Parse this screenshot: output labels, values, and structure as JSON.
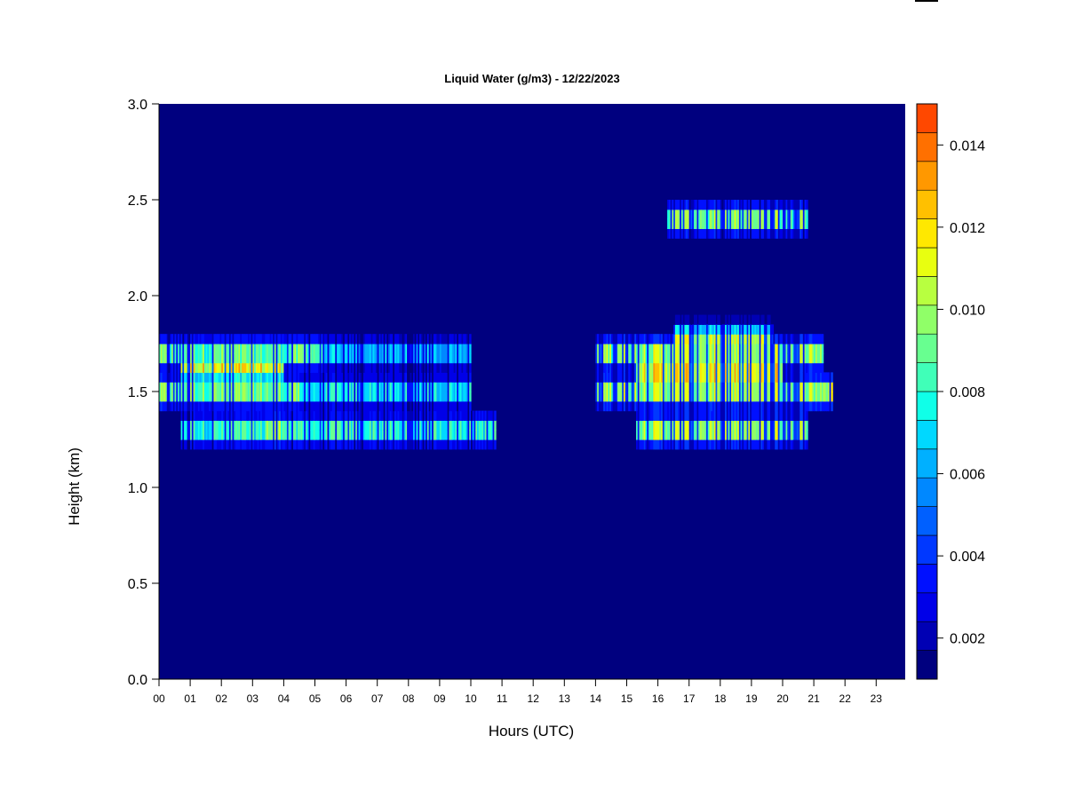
{
  "chart_data": {
    "type": "heatmap",
    "title": "Liquid Water (g/m3) - 12/22/2023",
    "xlabel": "Hours (UTC)",
    "ylabel": "Height (km)",
    "x_ticks": [
      "00",
      "01",
      "02",
      "03",
      "04",
      "05",
      "06",
      "07",
      "08",
      "09",
      "10",
      "11",
      "12",
      "13",
      "14",
      "15",
      "16",
      "17",
      "18",
      "19",
      "20",
      "21",
      "22",
      "23"
    ],
    "y_ticks": [
      "0.0",
      "0.5",
      "1.0",
      "1.5",
      "2.0",
      "2.5",
      "3.0"
    ],
    "xlim": [
      0,
      24
    ],
    "ylim": [
      0,
      3.0
    ],
    "colorbar": {
      "min": 0.001,
      "max": 0.015,
      "step": 0.0007,
      "tick_labels": [
        "0.002",
        "0.004",
        "0.006",
        "0.008",
        "0.010",
        "0.012",
        "0.014"
      ],
      "tick_values": [
        0.002,
        0.004,
        0.006,
        0.008,
        0.01,
        0.012,
        0.014
      ],
      "colors": [
        "#00007f",
        "#0000b4",
        "#0000e8",
        "#0010ff",
        "#0038ff",
        "#0060ff",
        "#0088ff",
        "#00b0ff",
        "#00d8ff",
        "#10ffe8",
        "#40ffb8",
        "#68ff90",
        "#90ff68",
        "#b8ff40",
        "#e8ff10",
        "#ffe800",
        "#ffc000",
        "#ff9800",
        "#ff7000",
        "#ff4800",
        "#ff2000",
        "#e80000",
        "#b40000",
        "#7f0000"
      ]
    },
    "background_value": 0.001,
    "cloud_layers": [
      {
        "x_start": 0.0,
        "x_end": 5.3,
        "height": 1.7,
        "peak": 0.0105
      },
      {
        "x_start": 5.3,
        "x_end": 10.0,
        "height": 1.7,
        "peak": 0.0075
      },
      {
        "x_start": 0.0,
        "x_end": 4.5,
        "height": 1.5,
        "peak": 0.0108
      },
      {
        "x_start": 4.5,
        "x_end": 10.0,
        "height": 1.5,
        "peak": 0.0085
      },
      {
        "x_start": 0.7,
        "x_end": 4.0,
        "height": 1.62,
        "peak": 0.0118
      },
      {
        "x_start": 0.7,
        "x_end": 10.8,
        "height": 1.3,
        "peak": 0.0095
      },
      {
        "x_start": 3.4,
        "x_end": 4.2,
        "height": 1.3,
        "peak": 0.0115
      },
      {
        "x_start": 14.0,
        "x_end": 21.3,
        "height": 1.7,
        "peak": 0.0118
      },
      {
        "x_start": 14.0,
        "x_end": 21.6,
        "height": 1.5,
        "peak": 0.012
      },
      {
        "x_start": 15.3,
        "x_end": 20.0,
        "height": 1.6,
        "peak": 0.0135
      },
      {
        "x_start": 15.3,
        "x_end": 20.8,
        "height": 1.3,
        "peak": 0.0118
      },
      {
        "x_start": 16.5,
        "x_end": 19.7,
        "height": 1.78,
        "peak": 0.0108
      },
      {
        "x_start": 16.3,
        "x_end": 20.8,
        "height": 2.4,
        "peak": 0.0112
      }
    ]
  }
}
